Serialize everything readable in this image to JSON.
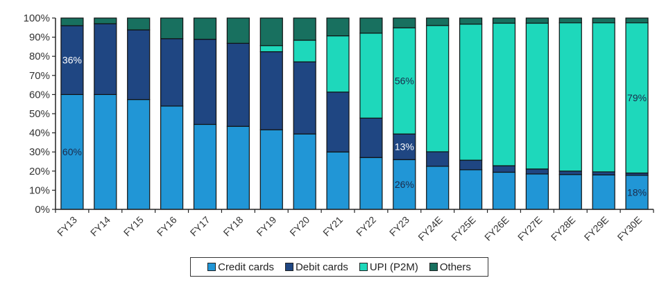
{
  "chart_data": {
    "type": "bar",
    "stacked": true,
    "title": "",
    "xlabel": "",
    "ylabel": "",
    "ylim": [
      0,
      100
    ],
    "yticks": [
      "0%",
      "10%",
      "20%",
      "30%",
      "40%",
      "50%",
      "60%",
      "70%",
      "80%",
      "90%",
      "100%"
    ],
    "categories": [
      "FY13",
      "FY14",
      "FY15",
      "FY16",
      "FY17",
      "FY18",
      "FY19",
      "FY20",
      "FY21",
      "FY22",
      "FY23",
      "FY24E",
      "FY25E",
      "FY26E",
      "FY27E",
      "FY28E",
      "FY29E",
      "FY30E"
    ],
    "series": [
      {
        "name": "Credit cards",
        "color": "#2196d6",
        "values": [
          60,
          60,
          57.4,
          54,
          44.4,
          43.4,
          41.6,
          39.4,
          30,
          27.1,
          26,
          22.5,
          20.7,
          19.4,
          18.5,
          18.2,
          18,
          17.8
        ]
      },
      {
        "name": "Debit cards",
        "color": "#1f4682",
        "values": [
          36,
          37,
          36.4,
          35.2,
          44.5,
          43.4,
          40.8,
          37.7,
          31.3,
          20.6,
          13.4,
          7.6,
          5,
          3.4,
          2.6,
          1.8,
          1.6,
          1.2
        ]
      },
      {
        "name": "UPI (P2M)",
        "color": "#1ed8bb",
        "values": [
          0,
          0,
          0,
          0,
          0,
          0,
          3.2,
          11.3,
          29.4,
          44.4,
          55.5,
          66,
          71.1,
          74.5,
          76.2,
          77.5,
          77.9,
          78.5
        ]
      },
      {
        "name": "Others",
        "color": "#18705f",
        "values": [
          4,
          3,
          6.2,
          10.8,
          11.1,
          13.2,
          14.4,
          11.6,
          9.3,
          7.9,
          5.1,
          3.9,
          3.2,
          2.7,
          2.7,
          2.5,
          2.5,
          2.5
        ]
      }
    ],
    "annotations": [
      {
        "category": "FY13",
        "series": "Debit cards",
        "text": "36%",
        "color": "#ffffff"
      },
      {
        "category": "FY13",
        "series": "Credit cards",
        "text": "60%",
        "color": "#1a2a4a"
      },
      {
        "category": "FY23",
        "series": "UPI (P2M)",
        "text": "56%",
        "color": "#1a2a4a"
      },
      {
        "category": "FY23",
        "series": "Debit cards",
        "text": "13%",
        "color": "#ffffff"
      },
      {
        "category": "FY23",
        "series": "Credit cards",
        "text": "26%",
        "color": "#1a2a4a"
      },
      {
        "category": "FY30E",
        "series": "UPI (P2M)",
        "text": "79%",
        "color": "#1a2a4a"
      },
      {
        "category": "FY30E",
        "series": "Credit cards",
        "text": "18%",
        "color": "#1a2a4a"
      }
    ],
    "legend": {
      "position": "bottom-center",
      "entries": [
        "Credit cards",
        "Debit cards",
        "UPI (P2M)",
        "Others"
      ]
    },
    "grid": false
  }
}
